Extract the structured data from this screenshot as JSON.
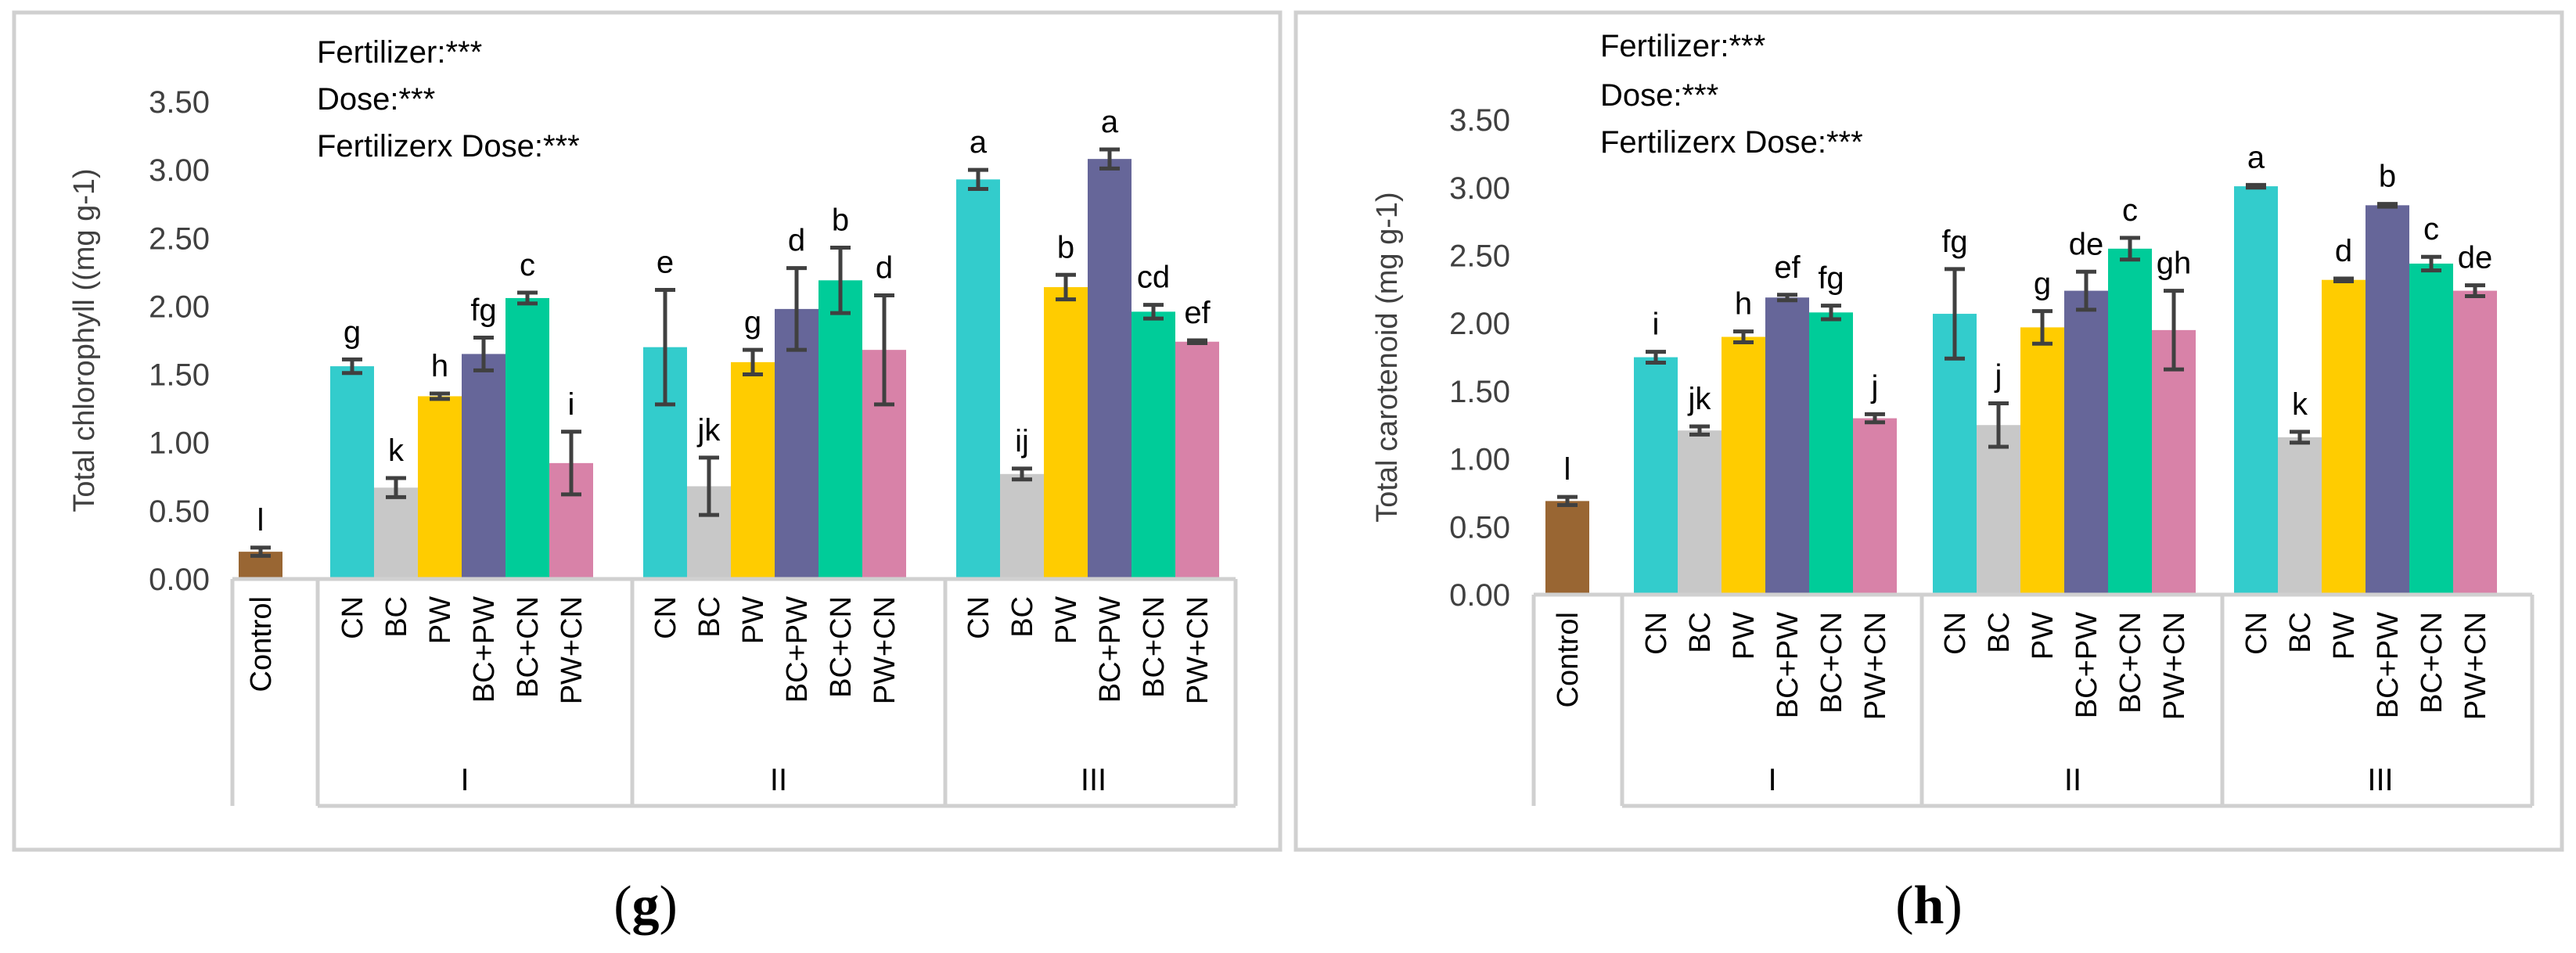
{
  "colors": {
    "Control": "#996633",
    "CN": "#33cccc",
    "BC": "#c8c8c8",
    "PW": "#ffcc00",
    "BC+PW": "#666699",
    "BC+CN": "#00cc99",
    "PW+CN": "#d882a8"
  },
  "chart_data": [
    {
      "type": "bar",
      "panel": "g",
      "caption": "g",
      "ylabel": "Total chlorophyll ((mg g-1)",
      "ylim": [
        0,
        3.5
      ],
      "yticks": [
        "0.00",
        "0.50",
        "1.00",
        "1.50",
        "2.00",
        "2.50",
        "3.00",
        "3.50"
      ],
      "grid": false,
      "stats": [
        "Fertilizer:***",
        "Dose:***",
        "Fertilizerx Dose:***"
      ],
      "groups": [
        {
          "name": "",
          "categories": [
            "Control"
          ],
          "values": [
            0.2
          ],
          "errors": [
            0.03
          ],
          "labels": [
            "l"
          ]
        },
        {
          "name": "I",
          "categories": [
            "CN",
            "BC",
            "PW",
            "BC+PW",
            "BC+CN",
            "PW+CN"
          ],
          "values": [
            1.56,
            0.67,
            1.34,
            1.65,
            2.06,
            0.85
          ],
          "errors": [
            0.05,
            0.07,
            0.02,
            0.12,
            0.04,
            0.23
          ],
          "labels": [
            "g",
            "k",
            "h",
            "fg",
            "c",
            "i"
          ]
        },
        {
          "name": "II",
          "categories": [
            "CN",
            "BC",
            "PW",
            "BC+PW",
            "BC+CN",
            "PW+CN"
          ],
          "values": [
            1.7,
            0.68,
            1.59,
            1.98,
            2.19,
            1.68
          ],
          "errors": [
            0.42,
            0.21,
            0.09,
            0.3,
            0.24,
            0.4
          ],
          "labels": [
            "e",
            "jk",
            "g",
            "d",
            "b",
            "d"
          ]
        },
        {
          "name": "III",
          "categories": [
            "CN",
            "BC",
            "PW",
            "BC+PW",
            "BC+CN",
            "PW+CN"
          ],
          "values": [
            2.93,
            0.77,
            2.14,
            3.08,
            1.96,
            1.74
          ],
          "errors": [
            0.07,
            0.04,
            0.09,
            0.07,
            0.05,
            0.01
          ],
          "labels": [
            "a",
            "ij",
            "b",
            "a",
            "cd",
            "ef"
          ]
        }
      ]
    },
    {
      "type": "bar",
      "panel": "h",
      "caption": "h",
      "ylabel": "Total carotenoid (mg g-1)",
      "ylim": [
        0,
        3.5
      ],
      "yticks": [
        "0.00",
        "0.50",
        "1.00",
        "1.50",
        "2.00",
        "2.50",
        "3.00",
        "3.50"
      ],
      "grid": false,
      "stats": [
        "Fertilizer:***",
        "Dose:***",
        "Fertilizerx Dose:***"
      ],
      "groups": [
        {
          "name": "",
          "categories": [
            "Control"
          ],
          "values": [
            0.69
          ],
          "errors": [
            0.03
          ],
          "labels": [
            "l"
          ]
        },
        {
          "name": "I",
          "categories": [
            "CN",
            "BC",
            "PW",
            "BC+PW",
            "BC+CN",
            "PW+CN"
          ],
          "values": [
            1.75,
            1.21,
            1.9,
            2.19,
            2.08,
            1.3
          ],
          "errors": [
            0.04,
            0.03,
            0.04,
            0.02,
            0.05,
            0.03
          ],
          "labels": [
            "i",
            "jk",
            "h",
            "ef",
            "fg",
            "j"
          ]
        },
        {
          "name": "II",
          "categories": [
            "CN",
            "BC",
            "PW",
            "BC+PW",
            "BC+CN",
            "PW+CN"
          ],
          "values": [
            2.07,
            1.25,
            1.97,
            2.24,
            2.55,
            1.95
          ],
          "errors": [
            0.33,
            0.16,
            0.12,
            0.14,
            0.08,
            0.29
          ],
          "labels": [
            "fg",
            "j",
            "g",
            "de",
            "c",
            "gh"
          ]
        },
        {
          "name": "III",
          "categories": [
            "CN",
            "BC",
            "PW",
            "BC+PW",
            "BC+CN",
            "PW+CN"
          ],
          "values": [
            3.01,
            1.16,
            2.32,
            2.87,
            2.44,
            2.24
          ],
          "errors": [
            0.01,
            0.04,
            0.01,
            0.01,
            0.05,
            0.04
          ],
          "labels": [
            "a",
            "k",
            "d",
            "b",
            "c",
            "de"
          ]
        }
      ]
    }
  ]
}
